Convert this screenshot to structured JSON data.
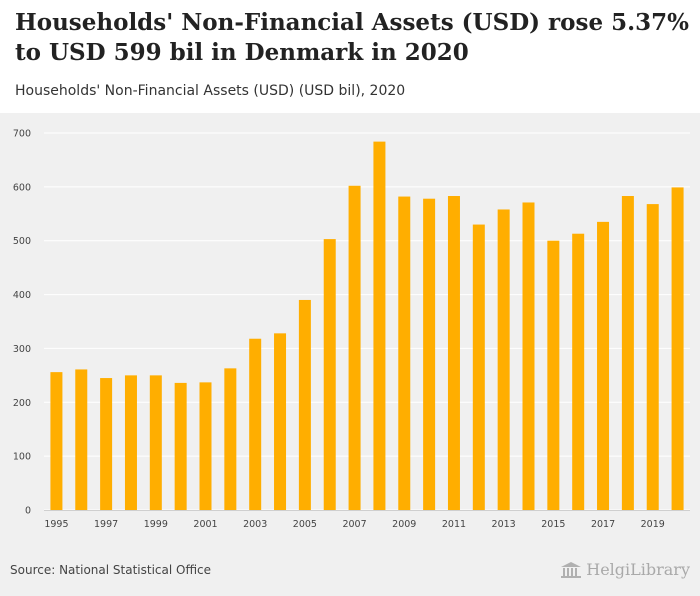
{
  "header": {
    "title": "Households' Non-Financial Assets (USD) rose 5.37% to USD 599 bil in Denmark in 2020",
    "subtitle": "Households' Non-Financial Assets (USD) (USD bil), 2020"
  },
  "footer": {
    "source": "Source: National Statistical Office",
    "brand": "HelgiLibrary",
    "brand_icon": "library-building-icon"
  },
  "colors": {
    "bar": "#ffae00",
    "plot_background": "#f0f0f0",
    "grid": "#ffffff"
  },
  "chart_data": {
    "type": "bar",
    "title": "Households' Non-Financial Assets (USD) (USD bil), 2020",
    "xlabel": "",
    "ylabel": "",
    "ylim": [
      0,
      700
    ],
    "yticks": [
      0,
      100,
      200,
      300,
      400,
      500,
      600,
      700
    ],
    "grid": true,
    "categories": [
      "1995",
      "1996",
      "1997",
      "1998",
      "1999",
      "2000",
      "2001",
      "2002",
      "2003",
      "2004",
      "2005",
      "2006",
      "2007",
      "2008",
      "2009",
      "2010",
      "2011",
      "2012",
      "2013",
      "2014",
      "2015",
      "2016",
      "2017",
      "2018",
      "2019",
      "2020"
    ],
    "x_tick_labels": [
      "1995",
      "1997",
      "1999",
      "2001",
      "2003",
      "2005",
      "2007",
      "2009",
      "2011",
      "2013",
      "2015",
      "2017",
      "2019"
    ],
    "values": [
      256,
      261,
      245,
      250,
      250,
      236,
      237,
      263,
      318,
      328,
      390,
      503,
      602,
      684,
      582,
      578,
      583,
      530,
      558,
      571,
      500,
      513,
      535,
      583,
      568,
      599
    ]
  }
}
